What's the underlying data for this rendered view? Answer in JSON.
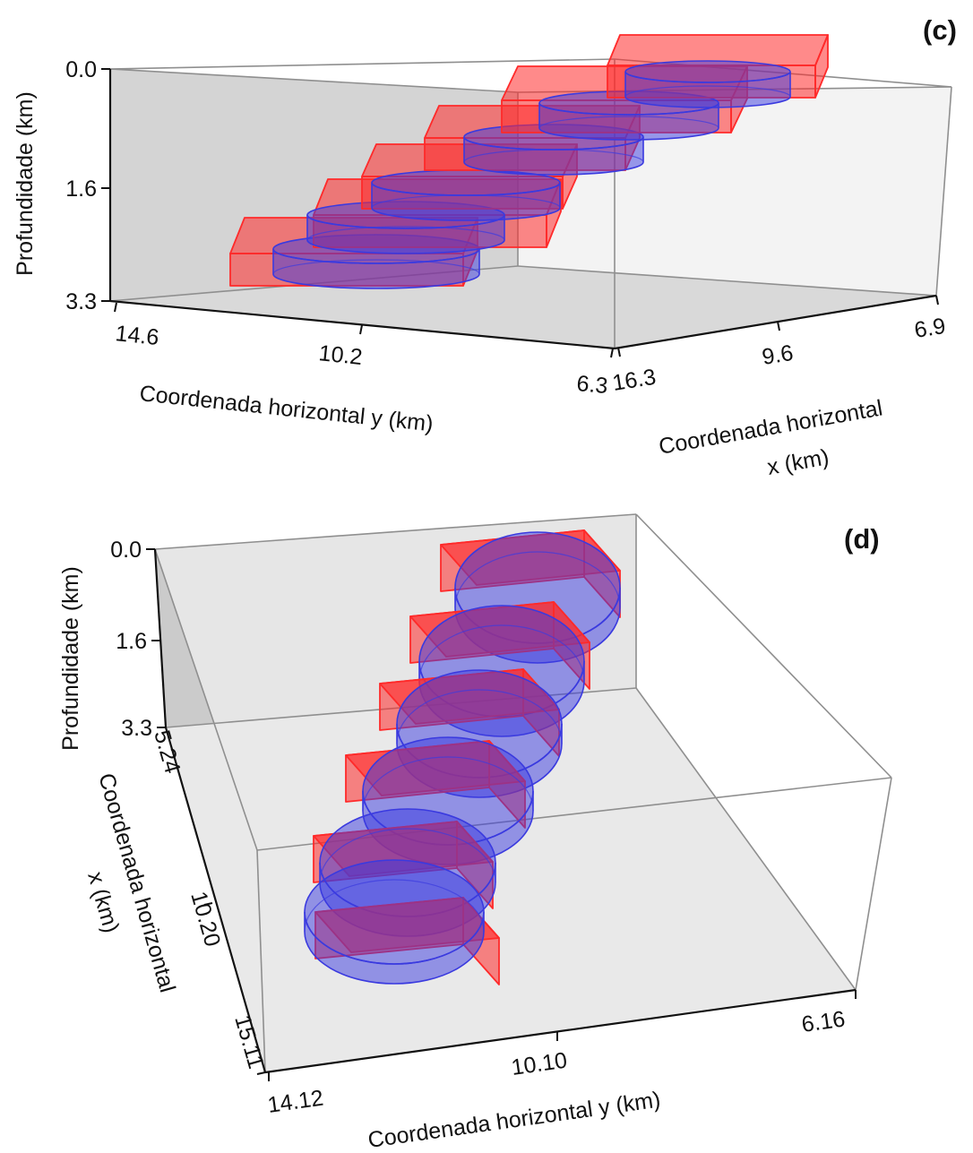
{
  "chart_data": [
    {
      "type": "3d-block-model",
      "panel_label": "(c)",
      "zlabel": "Profundidade (km)",
      "ylabel": "Coordenada horizontal y (km)",
      "xlabel": [
        "Coordenada horizontal",
        "x (km)"
      ],
      "z_ticks": [
        "0.0",
        "1.6",
        "3.3"
      ],
      "y_ticks": [
        "14.6",
        "10.2",
        "6.3"
      ],
      "x_ticks": [
        "16.3",
        "9.6",
        "6.9"
      ],
      "zlim": [
        0.0,
        3.3
      ],
      "ylim": [
        14.6,
        6.3
      ],
      "xlim": [
        16.3,
        6.9
      ],
      "series": [
        {
          "color": "#ff2a2a",
          "shape": "prism"
        },
        {
          "color": "#3a3adf",
          "shape": "cylinder"
        }
      ]
    },
    {
      "type": "3d-block-model",
      "panel_label": "(d)",
      "zlabel": "Profundidade (km)",
      "ylabel": "Coordenada horizontal y (km)",
      "xlabel": [
        "Coordenada horizontal",
        "x (km)"
      ],
      "z_ticks": [
        "0.0",
        "1.6",
        "3.3"
      ],
      "y_ticks": [
        "14.12",
        "10.10",
        "6.16"
      ],
      "x_ticks": [
        "5.24",
        "10.20",
        "15.11"
      ],
      "zlim": [
        0.0,
        3.3
      ],
      "ylim": [
        14.12,
        6.16
      ],
      "xlim": [
        5.24,
        15.11
      ],
      "series": [
        {
          "color": "#ff2a2a",
          "shape": "prism"
        },
        {
          "color": "#3a3adf",
          "shape": "cylinder"
        }
      ]
    }
  ]
}
